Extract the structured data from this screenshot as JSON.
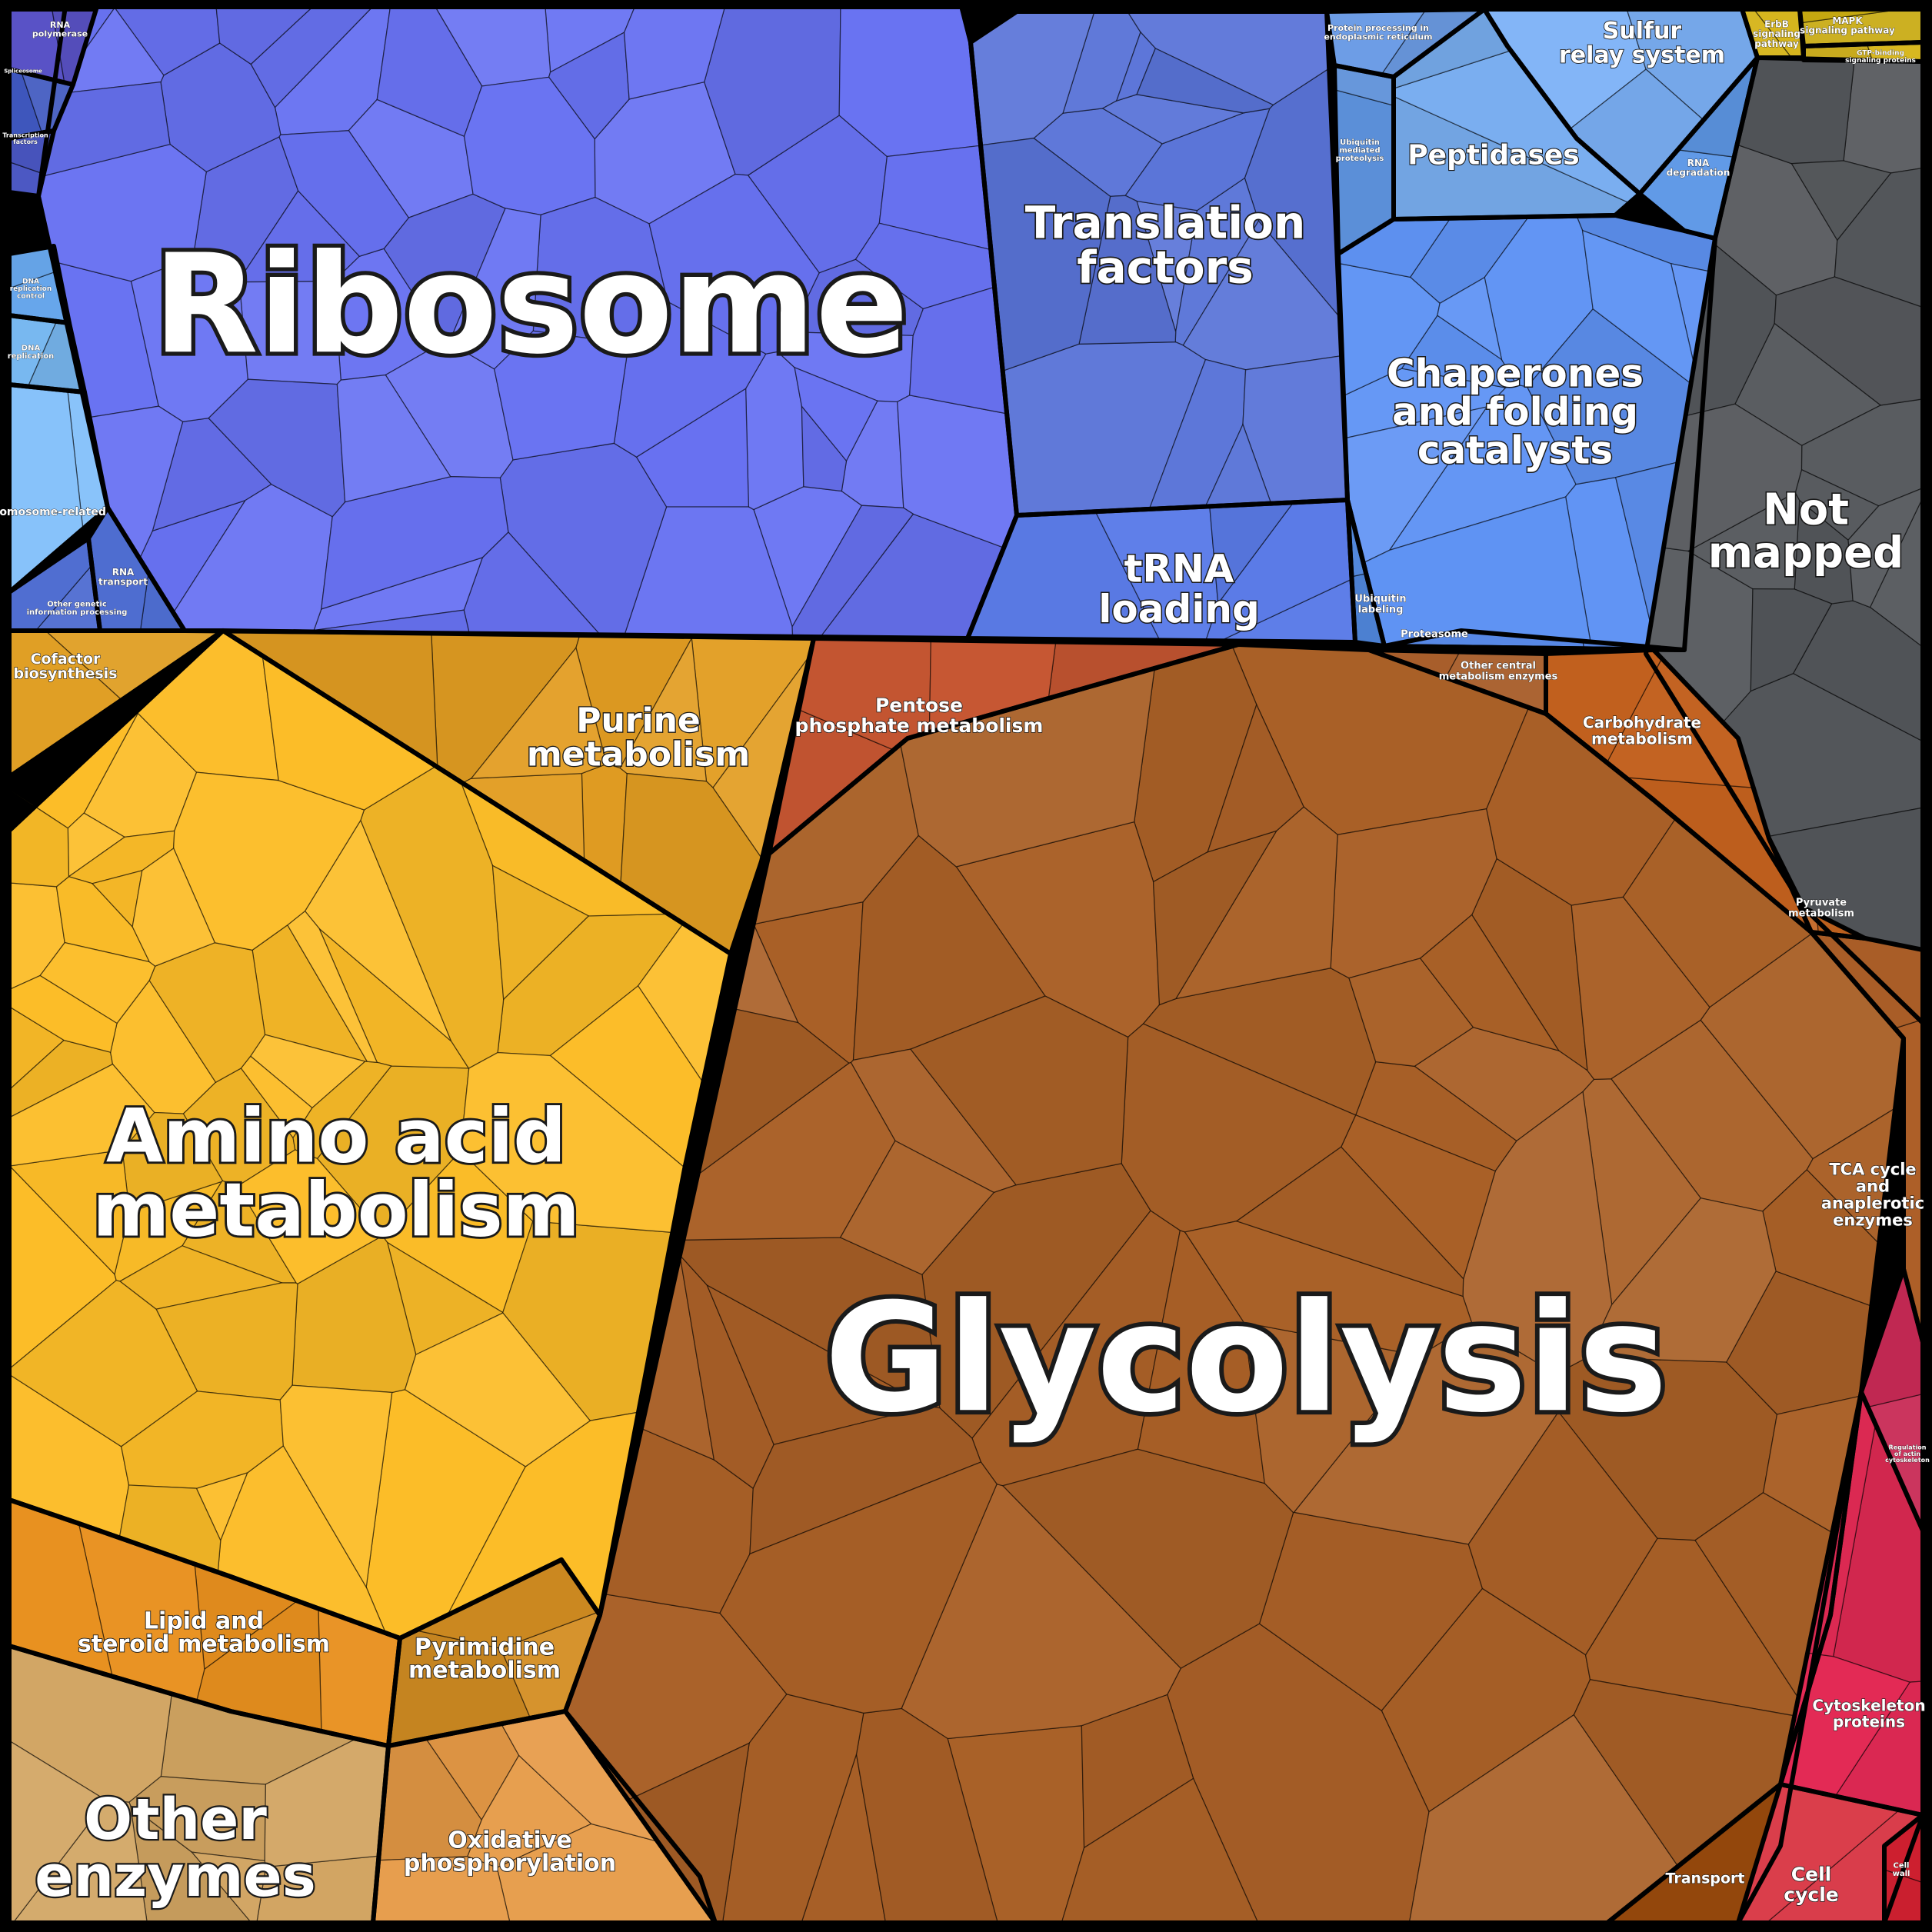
{
  "chart_data": {
    "type": "voronoi-treemap",
    "title": "",
    "regions": [
      {
        "id": "ribosome",
        "label": "Ribosome",
        "group": "genetic",
        "color": "#6872f2"
      },
      {
        "id": "translation-factors",
        "label": "Translation factors",
        "group": "genetic",
        "color": "#5a74d8"
      },
      {
        "id": "trna-loading",
        "label": "tRNA loading",
        "group": "genetic",
        "color": "#5b7ce8"
      },
      {
        "id": "sulfur-relay",
        "label": "Sulfur relay system",
        "group": "genetic",
        "color": "#7bb0f6"
      },
      {
        "id": "peptidases",
        "label": "Peptidases",
        "group": "genetic",
        "color": "#79aef0"
      },
      {
        "id": "chaperones",
        "label": "Chaperones and folding catalysts",
        "group": "genetic",
        "color": "#5f93f4"
      },
      {
        "id": "protein-processing-er",
        "label": "Protein processing in endoplasmic reticulum",
        "group": "genetic",
        "color": "#6e9ee8"
      },
      {
        "id": "ubiquitin-proteolysis",
        "label": "Ubiquitin mediated proteolysis",
        "group": "genetic",
        "color": "#5b8fd8"
      },
      {
        "id": "rna-degradation",
        "label": "RNA degradation",
        "group": "genetic",
        "color": "#5e98e6"
      },
      {
        "id": "ubiquitin-labeling",
        "label": "Ubiquitin labeling",
        "group": "genetic",
        "color": "#4f85d9"
      },
      {
        "id": "proteasome",
        "label": "Proteasome",
        "group": "genetic",
        "color": "#5a8cec"
      },
      {
        "id": "rna-polymerase",
        "label": "RNA polymerase",
        "group": "genetic",
        "color": "#5a53c8"
      },
      {
        "id": "transcription-factors",
        "label": "Transcription factors",
        "group": "genetic",
        "color": "#4a56c2"
      },
      {
        "id": "spliceosome",
        "label": "Spliceosome",
        "group": "genetic",
        "color": "#3f58bf"
      },
      {
        "id": "dna-replication",
        "label": "DNA replication",
        "group": "genetic",
        "color": "#78b8f0"
      },
      {
        "id": "dna-repair",
        "label": "DNA replication control",
        "group": "genetic",
        "color": "#69aaf0"
      },
      {
        "id": "chromosome-related",
        "label": "Chromosome-related",
        "group": "genetic",
        "color": "#87c2fa"
      },
      {
        "id": "rna-transport",
        "label": "RNA transport",
        "group": "genetic",
        "color": "#5070d6"
      },
      {
        "id": "dna-recombination",
        "label": "Other genetic information processing",
        "group": "genetic",
        "color": "#4d6bd0"
      },
      {
        "id": "not-mapped",
        "label": "Not mapped",
        "group": "other",
        "color": "#55585c"
      },
      {
        "id": "erbb",
        "label": "ErbB signaling pathway",
        "group": "signaling",
        "color": "#d4b214"
      },
      {
        "id": "mapk",
        "label": "MAPK signaling pathway",
        "group": "signaling",
        "color": "#c8aa10"
      },
      {
        "id": "gtp-binding",
        "label": "GTP-binding signaling proteins",
        "group": "signaling",
        "color": "#d8b820"
      },
      {
        "id": "amino-acid",
        "label": "Amino acid metabolism",
        "group": "metabolism",
        "color": "#fcbd28"
      },
      {
        "id": "purine",
        "label": "Purine metabolism",
        "group": "metabolism",
        "color": "#e29d22"
      },
      {
        "id": "cofactor",
        "label": "Cofactor biosynthesis",
        "group": "metabolism",
        "color": "#df9c1f"
      },
      {
        "id": "lipid",
        "label": "Lipid and steroid metabolism",
        "group": "metabolism",
        "color": "#e8901e"
      },
      {
        "id": "pyrimidine",
        "label": "Pyrimidine metabolism",
        "group": "metabolism",
        "color": "#d48e22"
      },
      {
        "id": "other-enzymes",
        "label": "Other enzymes",
        "group": "metabolism",
        "color": "#d1a461"
      },
      {
        "id": "oxphos",
        "label": "Oxidative phosphorylation",
        "group": "metabolism",
        "color": "#e69a46"
      },
      {
        "id": "glycolysis",
        "label": "Glycolysis",
        "group": "metabolism",
        "color": "#a96027"
      },
      {
        "id": "pentose-phosphate",
        "label": "Pentose phosphate metabolism",
        "group": "metabolism",
        "color": "#c65632"
      },
      {
        "id": "other-central",
        "label": "Other central metabolism enzymes",
        "group": "metabolism",
        "color": "#a65a26"
      },
      {
        "id": "carbohydrate",
        "label": "Carbohydrate metabolism",
        "group": "metabolism",
        "color": "#c2601e"
      },
      {
        "id": "pyruvate",
        "label": "Pyruvate metabolism",
        "group": "metabolism",
        "color": "#c0621f"
      },
      {
        "id": "tca",
        "label": "TCA cycle and anaplerotic enzymes",
        "group": "metabolism",
        "color": "#b5632a"
      },
      {
        "id": "transport",
        "label": "Transport",
        "group": "cellular",
        "color": "#9b4b0d"
      },
      {
        "id": "actin-regulation",
        "label": "Regulation of actin cytoskeleton",
        "group": "cellular",
        "color": "#c82a55"
      },
      {
        "id": "cytoskeleton",
        "label": "Cytoskeleton proteins",
        "group": "cellular",
        "color": "#e32a55"
      },
      {
        "id": "cell-cycle",
        "label": "Cell cycle",
        "group": "cellular",
        "color": "#e2404e"
      },
      {
        "id": "cell-wall",
        "label": "Cell wall",
        "group": "cellular",
        "color": "#d02030"
      }
    ]
  }
}
